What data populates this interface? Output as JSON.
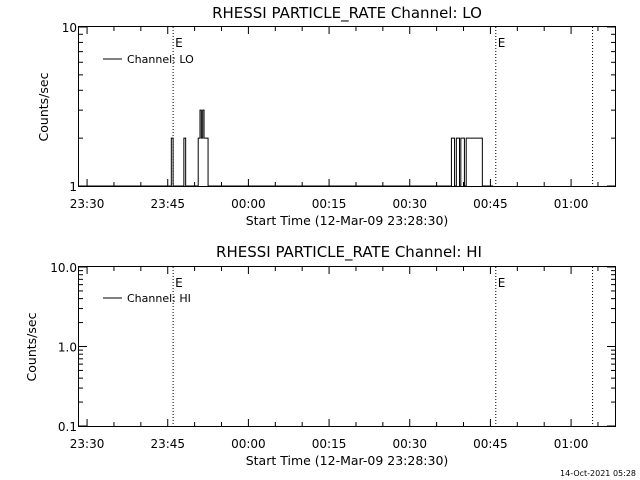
{
  "chart_data": [
    {
      "type": "line",
      "title": "RHESSI PARTICLE_RATE Channel: LO",
      "xlabel": "Start Time (12-Mar-09 23:28:30)",
      "ylabel": "Counts/sec",
      "y_scale": "log",
      "ylim": [
        1,
        10
      ],
      "y_ticks": [
        "1",
        "10"
      ],
      "x_ticks": [
        "23:30",
        "23:45",
        "00:00",
        "00:15",
        "00:30",
        "00:45",
        "01:00"
      ],
      "event_markers": [
        {
          "time": "23:46",
          "label": "E"
        },
        {
          "time": "00:46",
          "label": "E"
        },
        {
          "time": "01:04",
          "label": ""
        }
      ],
      "legend": {
        "position": "top-left",
        "entries": [
          "Channel: LO"
        ]
      },
      "series": [
        {
          "name": "Channel: LO",
          "points": [
            [
              "23:28:30",
              1
            ],
            [
              "23:45:30",
              1
            ],
            [
              "23:45:40",
              2
            ],
            [
              "23:46:00",
              1
            ],
            [
              "23:47:50",
              1
            ],
            [
              "23:48:00",
              2
            ],
            [
              "23:48:20",
              1
            ],
            [
              "23:50:30",
              1
            ],
            [
              "23:50:40",
              2
            ],
            [
              "23:51:00",
              3
            ],
            [
              "23:51:15",
              2
            ],
            [
              "23:51:30",
              3
            ],
            [
              "23:51:45",
              2
            ],
            [
              "23:52:15",
              2
            ],
            [
              "23:52:30",
              1
            ],
            [
              "00:37:30",
              1
            ],
            [
              "00:37:45",
              2
            ],
            [
              "00:38:20",
              1
            ],
            [
              "00:38:40",
              2
            ],
            [
              "00:39:15",
              1
            ],
            [
              "00:39:30",
              2
            ],
            [
              "00:40:00",
              2
            ],
            [
              "00:40:10",
              1
            ],
            [
              "00:40:30",
              2
            ],
            [
              "00:43:20",
              2
            ],
            [
              "00:43:30",
              1
            ],
            [
              "00:45:30",
              1
            ]
          ]
        }
      ]
    },
    {
      "type": "line",
      "title": "RHESSI PARTICLE_RATE Channel: HI",
      "xlabel": "Start Time (12-Mar-09 23:28:30)",
      "ylabel": "Counts/sec",
      "y_scale": "log",
      "ylim": [
        0.1,
        10
      ],
      "y_ticks": [
        "0.1",
        "1.0",
        "10.0"
      ],
      "x_ticks": [
        "23:30",
        "23:45",
        "00:00",
        "00:15",
        "00:30",
        "00:45",
        "01:00"
      ],
      "event_markers": [
        {
          "time": "23:46",
          "label": "E"
        },
        {
          "time": "00:46",
          "label": "E"
        },
        {
          "time": "01:04",
          "label": ""
        }
      ],
      "legend": {
        "position": "top-left",
        "entries": [
          "Channel: HI"
        ]
      },
      "series": [
        {
          "name": "Channel: HI",
          "points": []
        }
      ]
    }
  ],
  "footer": {
    "timestamp": "14-Oct-2021 05:28"
  }
}
